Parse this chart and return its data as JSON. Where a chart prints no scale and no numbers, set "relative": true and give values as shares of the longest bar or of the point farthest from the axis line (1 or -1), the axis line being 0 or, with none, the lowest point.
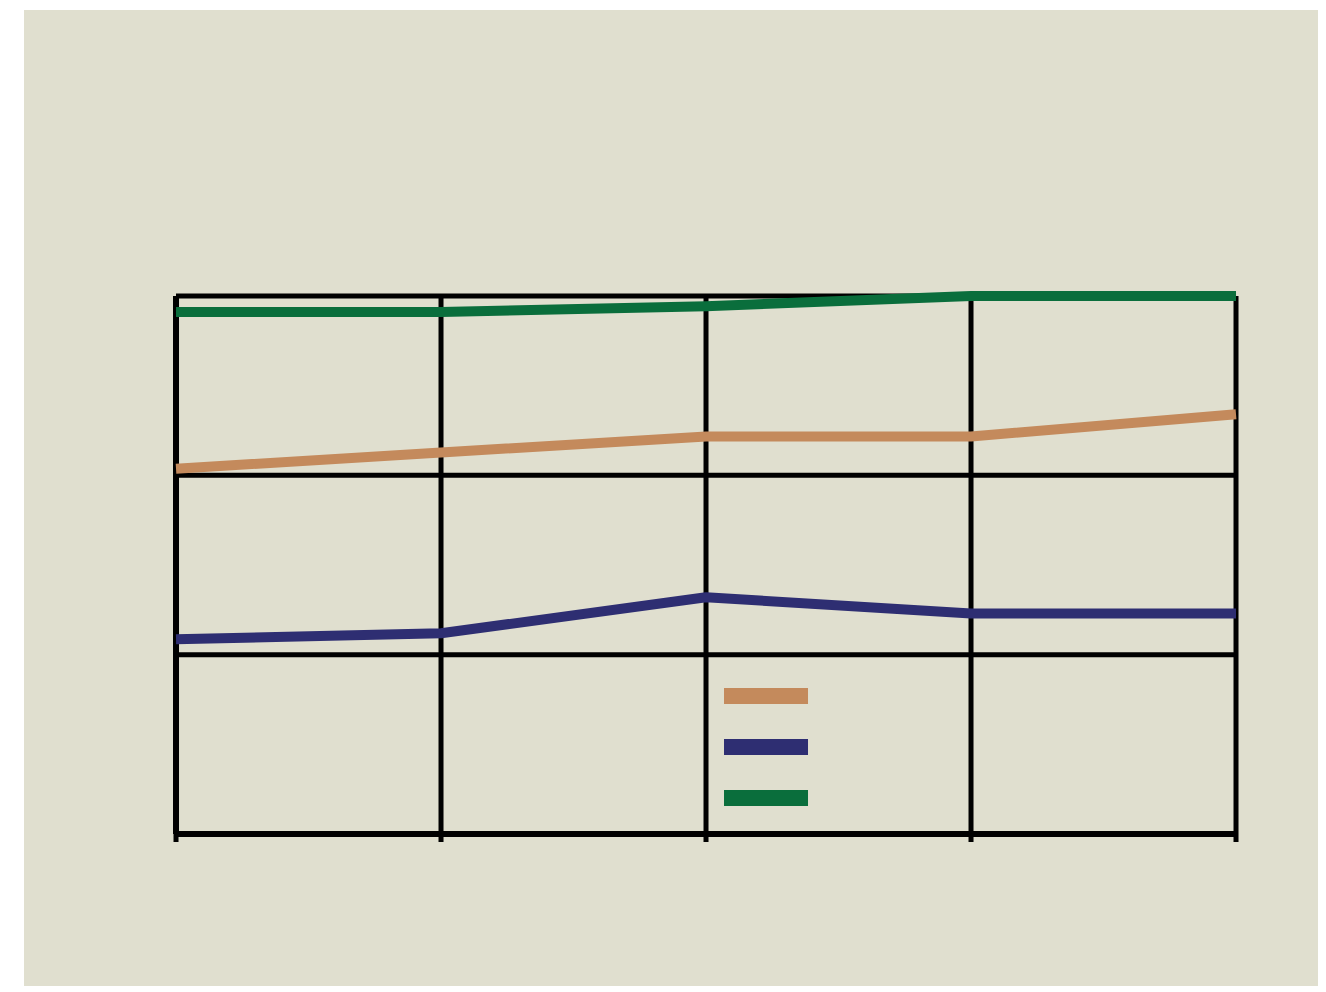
{
  "chart_data": {
    "type": "line",
    "relative": true,
    "categories": [
      null,
      null,
      null,
      null,
      null
    ],
    "grid": true,
    "marker": "none",
    "line_style": "solid",
    "series": [
      {
        "color": "#c48a5c",
        "values": [
          0.679,
          0.709,
          0.739,
          0.739,
          0.78
        ]
      },
      {
        "color": "#2e2e72",
        "values": [
          0.362,
          0.373,
          0.44,
          0.41,
          0.41
        ]
      },
      {
        "color": "#0a6e3c",
        "values": [
          0.97,
          0.97,
          0.981,
          1,
          1
        ]
      }
    ]
  }
}
